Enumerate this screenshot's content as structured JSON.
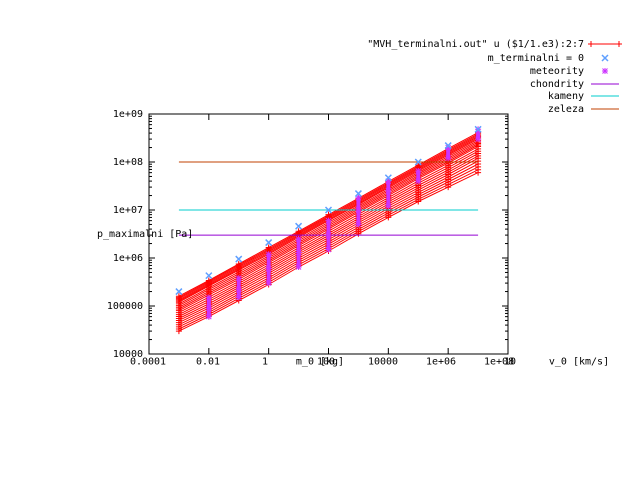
{
  "chart_data": {
    "type": "scatter",
    "xaxis": {
      "scale": "log",
      "xlim": [
        0.0001,
        100000000
      ],
      "ticks": [
        "0.0001",
        "0.01",
        "1",
        "100",
        "10000",
        "1e+06",
        "1e+08"
      ],
      "labels_printed": [
        "m_0 [kg]",
        "10",
        "v_0 [km/s]"
      ]
    },
    "yaxis": {
      "scale": "log",
      "ylim": [
        10000,
        1000000000
      ],
      "ticks": [
        "10000",
        "100000",
        "1e+06",
        "1e+07",
        "1e+08",
        "1e+09"
      ],
      "label": "p_maximalni [Pa]"
    },
    "legend_position": "top-right",
    "grid": false,
    "series": [
      {
        "name": "\"MVH_terminalni.out\" u ($1/1.e3):2:7",
        "style": "linespoints-plus",
        "color": "#ff0000",
        "x": [
          0.001,
          0.01,
          0.1,
          1,
          10,
          100,
          1000,
          10000,
          100000,
          1000000,
          10000000
        ],
        "lines": [
          [
            30000,
            60000,
            130000,
            280000,
            650000,
            1400000,
            3200000,
            7000000,
            15000000,
            30000000,
            60000000
          ],
          [
            50000,
            100000,
            220000,
            480000,
            1100000,
            2400000,
            5400000,
            12000000,
            26000000,
            55000000,
            120000000
          ],
          [
            80000,
            170000,
            360000,
            800000,
            1800000,
            4000000,
            9000000,
            20000000,
            45000000,
            95000000,
            210000000
          ],
          [
            120000,
            260000,
            560000,
            1200000,
            2700000,
            6000000,
            13000000,
            29000000,
            65000000,
            140000000,
            300000000
          ],
          [
            160000,
            340000,
            750000,
            1650000,
            3600000,
            8000000,
            17500000,
            39000000,
            86000000,
            190000000,
            410000000
          ]
        ]
      },
      {
        "name": "m_terminalni = 0",
        "style": "points-x",
        "color": "#5f9fff",
        "x": [
          0.001,
          0.01,
          0.1,
          1,
          10,
          100,
          1000,
          10000,
          100000,
          1000000,
          10000000
        ],
        "y": [
          200000,
          430000,
          950000,
          2100000,
          4600000,
          10000000,
          22000000,
          47000000,
          100000000,
          220000000,
          480000000
        ]
      },
      {
        "name": "meteority",
        "style": "points-star",
        "color": "#cc33ff",
        "groups": [
          {
            "x": 0.01,
            "y": [
              60000,
              90000,
              150000
            ]
          },
          {
            "x": 0.1,
            "y": [
              150000,
              220000,
              380000
            ]
          },
          {
            "x": 1,
            "y": [
              300000,
              600000,
              1200000
            ]
          },
          {
            "x": 10,
            "y": [
              650000,
              1300000,
              2500000
            ]
          },
          {
            "x": 100,
            "y": [
              1500000,
              3000000,
              6000000
            ]
          },
          {
            "x": 1000,
            "y": [
              5000000,
              10000000,
              18000000
            ]
          },
          {
            "x": 10000,
            "y": [
              12000000,
              25000000,
              40000000
            ]
          },
          {
            "x": 100000,
            "y": [
              40000000,
              65000000
            ]
          },
          {
            "x": 1000000,
            "y": [
              120000000,
              200000000
            ]
          },
          {
            "x": 10000000,
            "y": [
              300000000,
              480000000
            ]
          }
        ]
      },
      {
        "name": "chondrity",
        "style": "line",
        "color": "#9400d3",
        "x": [
          0.001,
          10000000
        ],
        "y": [
          3000000,
          3000000
        ]
      },
      {
        "name": "kameny",
        "style": "line",
        "color": "#00cccc",
        "x": [
          0.001,
          10000000
        ],
        "y": [
          10000000,
          10000000
        ]
      },
      {
        "name": "zeleza",
        "style": "line",
        "color": "#c04000",
        "x": [
          0.001,
          10000000
        ],
        "y": [
          100000000,
          100000000
        ]
      }
    ]
  }
}
